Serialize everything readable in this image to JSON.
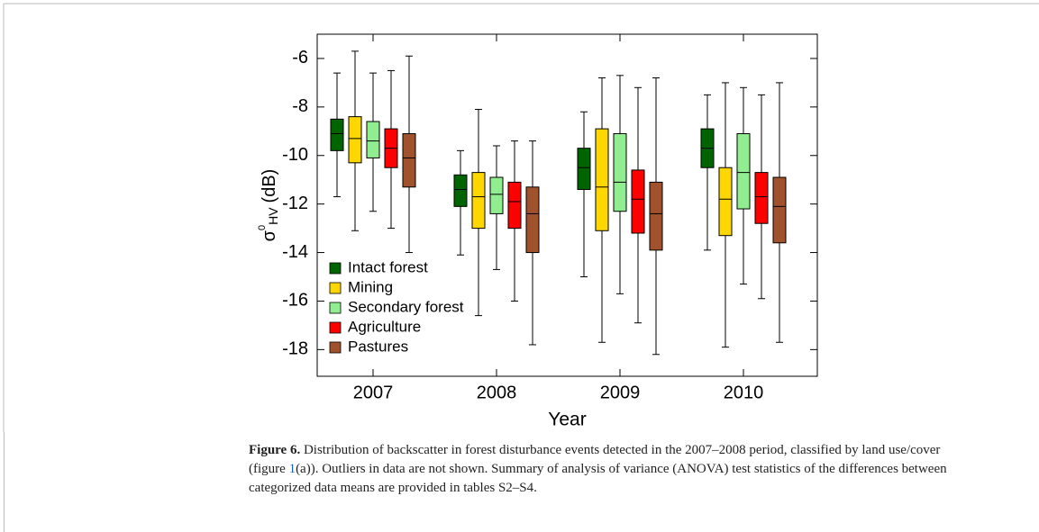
{
  "chart_data": {
    "type": "box",
    "categories": [
      "2007",
      "2008",
      "2009",
      "2010"
    ],
    "xlabel": "Year",
    "ylabel": {
      "symbol": "σ",
      "sup": "0",
      "sub": "HV",
      "unit": "(dB)"
    },
    "ylim": [
      -19.1,
      -5.0
    ],
    "yticks": [
      -6,
      -8,
      -10,
      -12,
      -14,
      -16,
      -18
    ],
    "legend": "lower left",
    "series": [
      {
        "name": "Intact forest",
        "color": "#006400",
        "values": [
          {
            "whislo": -11.7,
            "q1": -9.8,
            "med": -9.1,
            "q3": -8.5,
            "whishi": -6.6
          },
          {
            "whislo": -14.1,
            "q1": -12.1,
            "med": -11.4,
            "q3": -10.8,
            "whishi": -9.8
          },
          {
            "whislo": -15.0,
            "q1": -11.4,
            "med": -10.5,
            "q3": -9.7,
            "whishi": -8.2
          },
          {
            "whislo": -13.9,
            "q1": -10.5,
            "med": -9.7,
            "q3": -8.9,
            "whishi": -7.5
          }
        ]
      },
      {
        "name": "Mining",
        "color": "#ffd700",
        "values": [
          {
            "whislo": -13.1,
            "q1": -10.3,
            "med": -9.3,
            "q3": -8.4,
            "whishi": -5.7
          },
          {
            "whislo": -16.6,
            "q1": -13.0,
            "med": -11.7,
            "q3": -10.7,
            "whishi": -8.1
          },
          {
            "whislo": -17.7,
            "q1": -13.1,
            "med": -11.3,
            "q3": -8.9,
            "whishi": -6.8
          },
          {
            "whislo": -17.9,
            "q1": -13.3,
            "med": -11.8,
            "q3": -10.5,
            "whishi": -7.0
          }
        ]
      },
      {
        "name": "Secondary forest",
        "color": "#90ee90",
        "values": [
          {
            "whislo": -12.3,
            "q1": -10.1,
            "med": -9.4,
            "q3": -8.6,
            "whishi": -6.6
          },
          {
            "whislo": -14.7,
            "q1": -12.4,
            "med": -11.6,
            "q3": -10.9,
            "whishi": -9.6
          },
          {
            "whislo": -15.7,
            "q1": -12.3,
            "med": -11.1,
            "q3": -9.1,
            "whishi": -6.7
          },
          {
            "whislo": -15.3,
            "q1": -12.2,
            "med": -10.7,
            "q3": -9.1,
            "whishi": -7.2
          }
        ]
      },
      {
        "name": "Agriculture",
        "color": "#ff0000",
        "values": [
          {
            "whislo": -13.0,
            "q1": -10.5,
            "med": -9.7,
            "q3": -8.9,
            "whishi": -6.5
          },
          {
            "whislo": -16.0,
            "q1": -13.0,
            "med": -11.9,
            "q3": -11.1,
            "whishi": -9.4
          },
          {
            "whislo": -16.9,
            "q1": -13.2,
            "med": -11.8,
            "q3": -10.6,
            "whishi": -7.2
          },
          {
            "whislo": -15.9,
            "q1": -12.8,
            "med": -11.7,
            "q3": -10.7,
            "whishi": -7.5
          }
        ]
      },
      {
        "name": "Pastures",
        "color": "#a0522d",
        "values": [
          {
            "whislo": -14.0,
            "q1": -11.3,
            "med": -10.1,
            "q3": -9.1,
            "whishi": -5.9
          },
          {
            "whislo": -17.8,
            "q1": -14.0,
            "med": -12.4,
            "q3": -11.3,
            "whishi": -9.4
          },
          {
            "whislo": -18.2,
            "q1": -13.9,
            "med": -12.4,
            "q3": -11.1,
            "whishi": -6.8
          },
          {
            "whislo": -17.7,
            "q1": -13.6,
            "med": -12.1,
            "q3": -10.9,
            "whishi": -7.0
          }
        ]
      }
    ]
  },
  "caption": {
    "label": "Figure 6.",
    "line1": "Distribution of backscatter in forest disturbance events detected in the 2007–2008 period, classified by land use/cover",
    "line2a": "(figure ",
    "link": "1",
    "line2b": "(a)). Outliers in data are not shown. Summary of analysis of variance (ANOVA) test statistics of the differences between",
    "line3": "categorized data means are provided in tables S2–S4."
  }
}
